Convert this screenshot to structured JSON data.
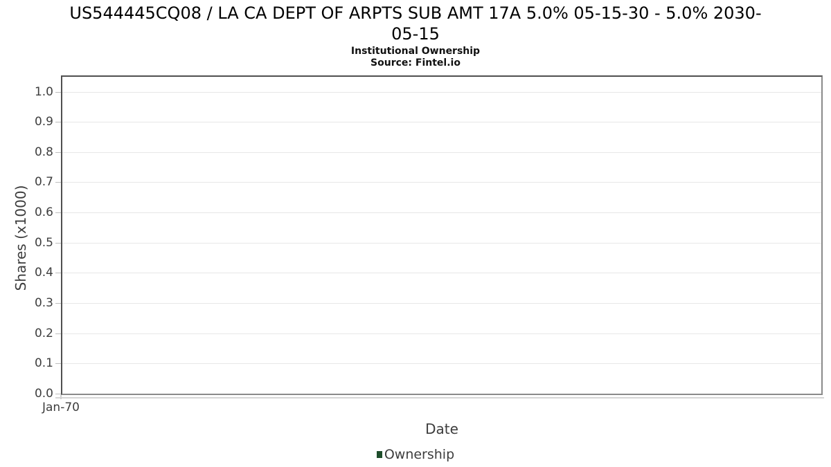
{
  "header": {
    "title_line1": "US544445CQ08 / LA CA DEPT OF ARPTS SUB AMT 17A 5.0% 05-15-30 - 5.0% 2030-",
    "title_line2": "05-15",
    "subtitle": "Institutional Ownership",
    "source": "Source: Fintel.io"
  },
  "chart_data": {
    "type": "line",
    "title": "US544445CQ08 / LA CA DEPT OF ARPTS SUB AMT 17A 5.0% 05-15-30 - 5.0% 2030-05-15",
    "subtitle": "Institutional Ownership",
    "source": "Source: Fintel.io",
    "xlabel": "Date",
    "ylabel": "Shares (x1000)",
    "x_tick_labels": [
      "Jan-70"
    ],
    "y_tick_labels": [
      "1.0",
      "0.9",
      "0.8",
      "0.7",
      "0.6",
      "0.5",
      "0.4",
      "0.3",
      "0.2",
      "0.1",
      "0.0"
    ],
    "y_ticks": [
      1.0,
      0.9,
      0.8,
      0.7,
      0.6,
      0.5,
      0.4,
      0.3,
      0.2,
      0.1,
      0.0
    ],
    "ylim": [
      0.0,
      1.05
    ],
    "grid": "horizontal-only",
    "legend_position": "bottom-center",
    "series": [
      {
        "name": "Ownership",
        "color": "#1e4d2b",
        "x": [],
        "y": []
      }
    ]
  },
  "colors": {
    "plot_border": "#8a8a8a",
    "axis_line": "#4f4f4f",
    "gridline": "#e7e7e7",
    "tick_mark": "#bdbdbd",
    "text": "#3d3d3d",
    "title_text": "#000000",
    "legend_marker": "#1e4d2b"
  }
}
